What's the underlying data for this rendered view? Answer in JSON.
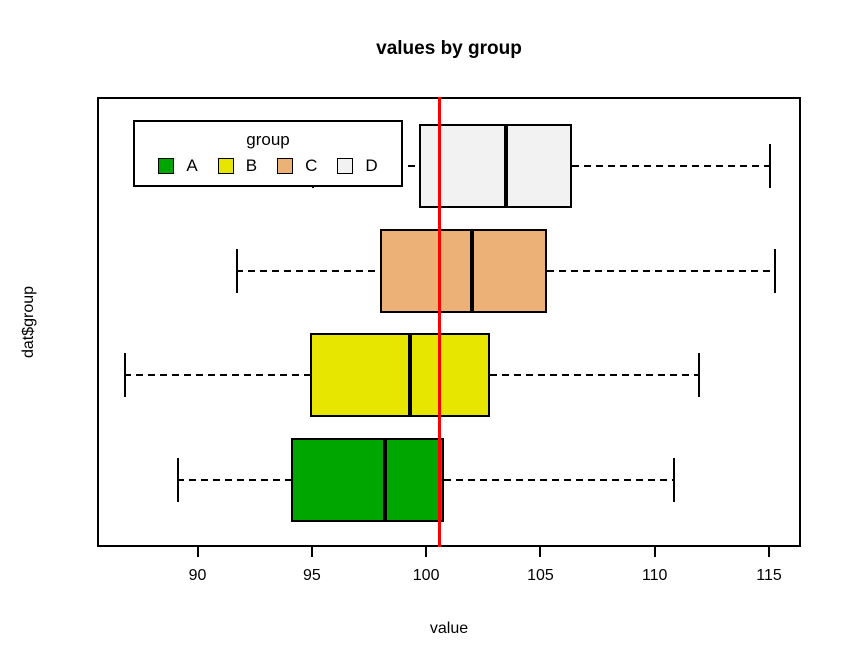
{
  "title": "values by group",
  "x_axis": {
    "label": "value",
    "ticks": [
      "90",
      "95",
      "100",
      "105",
      "110",
      "115"
    ]
  },
  "y_axis": {
    "label": "dat$group"
  },
  "legend": {
    "title": "group",
    "items": [
      {
        "label": "A",
        "color": "#00A600"
      },
      {
        "label": "B",
        "color": "#E6E600"
      },
      {
        "label": "C",
        "color": "#ECB176"
      },
      {
        "label": "D",
        "color": "#F2F2F2"
      }
    ]
  },
  "chart_data": {
    "type": "boxplot",
    "orientation": "horizontal",
    "title": "values by group",
    "xlabel": "value",
    "ylabel": "dat$group",
    "x_ticks": [
      90,
      95,
      100,
      105,
      110,
      115
    ],
    "xlim": [
      85.6,
      116.4
    ],
    "grid": false,
    "groups": [
      {
        "name": "A",
        "color": "#00A600",
        "whisker_low": 89.1,
        "q1": 94.1,
        "median": 98.2,
        "q3": 100.8,
        "whisker_high": 110.8
      },
      {
        "name": "B",
        "color": "#E6E600",
        "whisker_low": 86.8,
        "q1": 94.9,
        "median": 99.3,
        "q3": 102.8,
        "whisker_high": 111.9
      },
      {
        "name": "C",
        "color": "#ECB176",
        "whisker_low": 91.7,
        "q1": 98.0,
        "median": 102.0,
        "q3": 105.3,
        "whisker_high": 115.2
      },
      {
        "name": "D",
        "color": "#F2F2F2",
        "whisker_low": 95.0,
        "q1": 99.7,
        "median": 103.5,
        "q3": 106.4,
        "whisker_high": 115.0
      }
    ],
    "reference_line": {
      "value": 100.6,
      "color": "#FF0000"
    }
  }
}
